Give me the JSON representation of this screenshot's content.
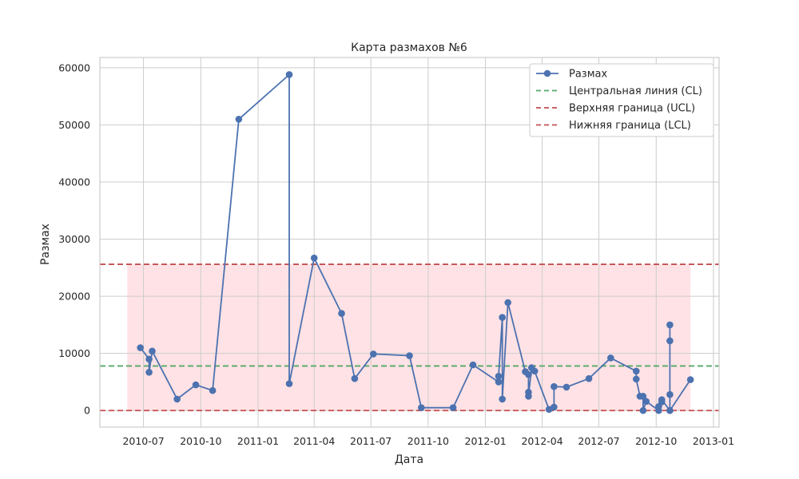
{
  "chart_data": {
    "type": "line",
    "title": "Карта размахов №6",
    "xlabel": "Дата",
    "ylabel": "Размах",
    "x_ticks": [
      "2010-07",
      "2010-10",
      "2011-01",
      "2011-04",
      "2011-07",
      "2011-10",
      "2012-01",
      "2012-04",
      "2012-07",
      "2012-10",
      "2013-01"
    ],
    "y_ticks": [
      0,
      10000,
      20000,
      30000,
      40000,
      50000,
      60000
    ],
    "xlim": [
      "2010-04-22",
      "2013-01-10"
    ],
    "ylim": [
      -2900,
      61800
    ],
    "grid": true,
    "legend_position": "top-right",
    "series": [
      {
        "name": "Размах",
        "color": "#4c72b0",
        "points": [
          [
            "2010-06-26",
            11000
          ],
          [
            "2010-07-10",
            9000
          ],
          [
            "2010-07-10",
            6700
          ],
          [
            "2010-07-15",
            10400
          ],
          [
            "2010-08-24",
            2000
          ],
          [
            "2010-09-23",
            4500
          ],
          [
            "2010-10-20",
            3500
          ],
          [
            "2010-12-01",
            51000
          ],
          [
            "2011-02-20",
            58800
          ],
          [
            "2011-02-20",
            4700
          ],
          [
            "2011-04-01",
            26700
          ],
          [
            "2011-05-15",
            17000
          ],
          [
            "2011-06-05",
            5600
          ],
          [
            "2011-07-05",
            9900
          ],
          [
            "2011-09-01",
            9600
          ],
          [
            "2011-09-20",
            500
          ],
          [
            "2011-11-10",
            500
          ],
          [
            "2011-12-12",
            8000
          ],
          [
            "2012-01-22",
            5000
          ],
          [
            "2012-01-22",
            6000
          ],
          [
            "2012-01-28",
            16300
          ],
          [
            "2012-01-28",
            2000
          ],
          [
            "2012-02-06",
            18900
          ],
          [
            "2012-03-05",
            6800
          ],
          [
            "2012-03-10",
            6300
          ],
          [
            "2012-03-10",
            3200
          ],
          [
            "2012-03-10",
            2500
          ],
          [
            "2012-03-15",
            7500
          ],
          [
            "2012-03-20",
            6900
          ],
          [
            "2012-04-12",
            200
          ],
          [
            "2012-04-20",
            600
          ],
          [
            "2012-04-20",
            4200
          ],
          [
            "2012-05-10",
            4100
          ],
          [
            "2012-06-15",
            5600
          ],
          [
            "2012-07-20",
            9200
          ],
          [
            "2012-08-30",
            6900
          ],
          [
            "2012-08-30",
            5500
          ],
          [
            "2012-09-05",
            2500
          ],
          [
            "2012-09-10",
            2500
          ],
          [
            "2012-09-10",
            0
          ],
          [
            "2012-09-15",
            1600
          ],
          [
            "2012-10-05",
            0
          ],
          [
            "2012-10-05",
            700
          ],
          [
            "2012-10-10",
            1500
          ],
          [
            "2012-10-10",
            1900
          ],
          [
            "2012-10-23",
            0
          ],
          [
            "2012-10-23",
            2800
          ],
          [
            "2012-10-23",
            12200
          ],
          [
            "2012-10-23",
            15000
          ],
          [
            "2012-10-23",
            0
          ],
          [
            "2012-11-25",
            5400
          ]
        ]
      },
      {
        "name": "Центральная линия (CL)",
        "color": "#55a868",
        "style": "dashed",
        "y": 7800
      },
      {
        "name": "Верхняя граница (UCL)",
        "color": "#c44e52",
        "style": "dashed",
        "y": 25600
      },
      {
        "name": "Нижняя граница (LCL)",
        "color": "#c44e52",
        "style": "dashed",
        "y": 0
      }
    ],
    "band": {
      "color": "#ffdde1",
      "y_min": 0,
      "y_max": 25600,
      "x_start": "2010-06-05",
      "x_end": "2012-11-25"
    }
  }
}
